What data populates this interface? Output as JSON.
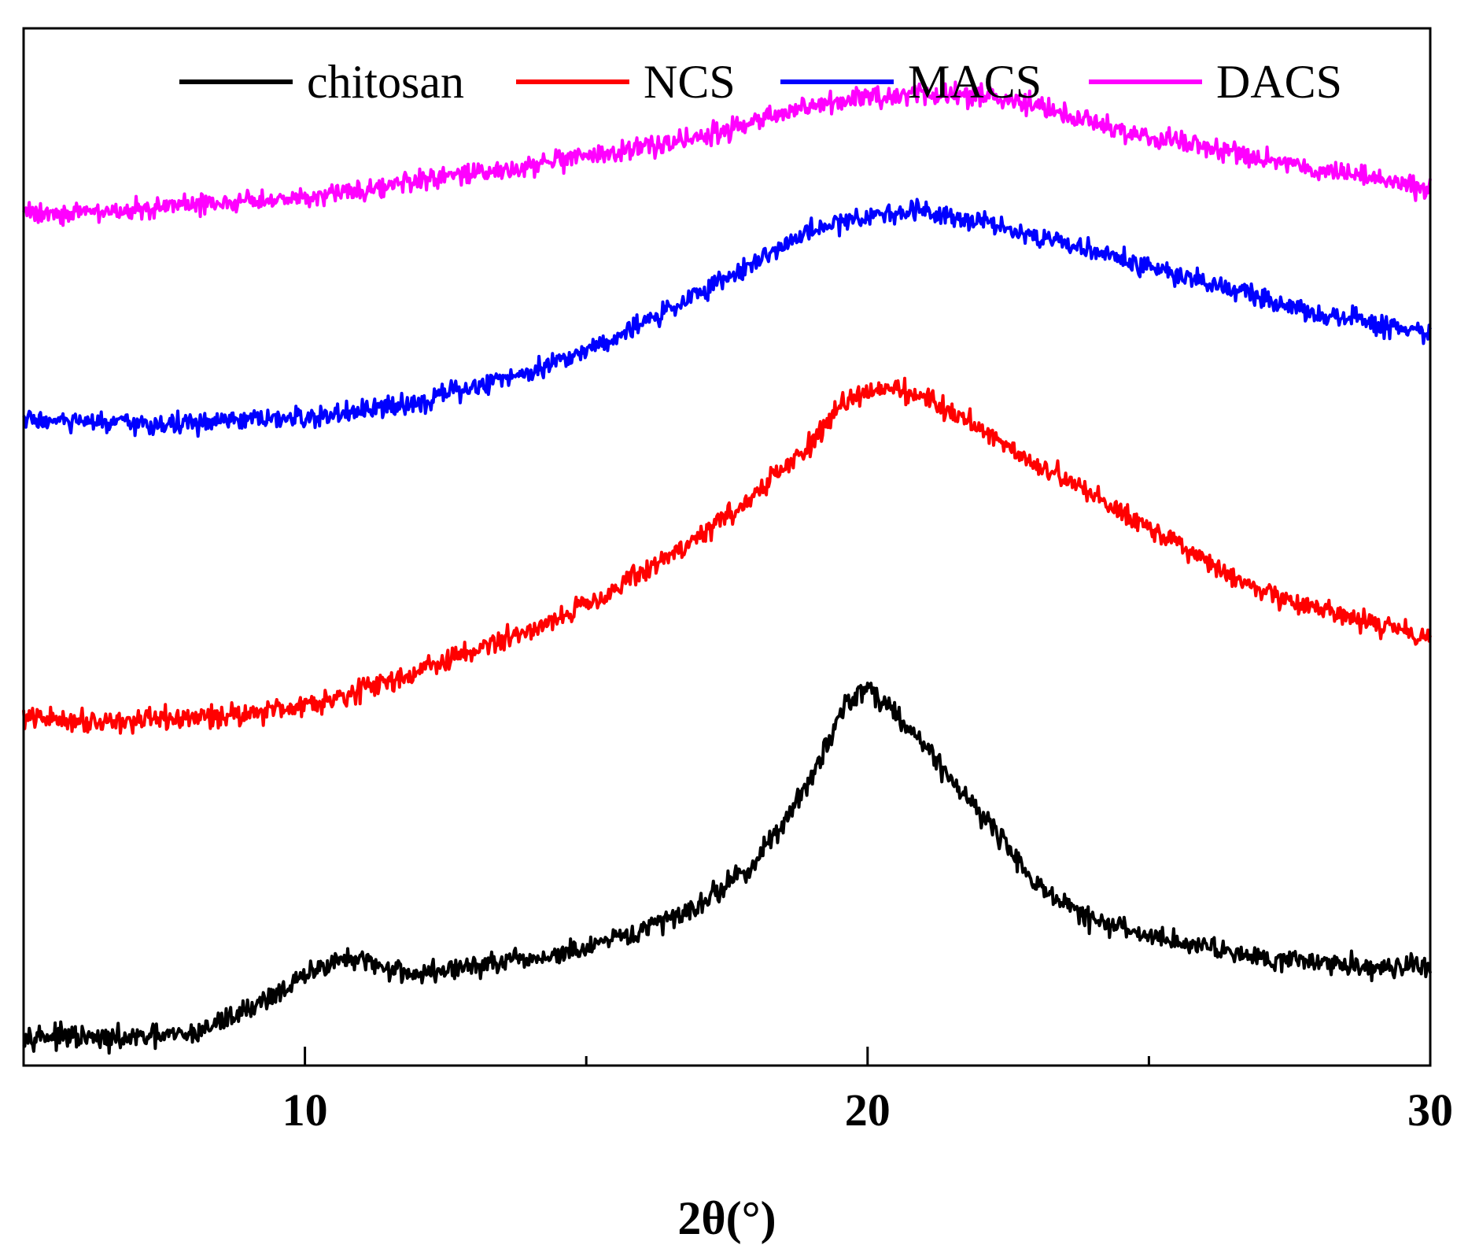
{
  "chart_data": {
    "type": "line",
    "title": "",
    "xlabel": "2θ(°)",
    "ylabel": "",
    "xlim": [
      5,
      30
    ],
    "ylim": [
      0,
      100
    ],
    "xticks": [
      10,
      20,
      30
    ],
    "xticks_minor": [
      15,
      25
    ],
    "grid": false,
    "legend_position": "top",
    "series": [
      {
        "name": "chitosan",
        "color": "#000000",
        "noise": 1.6,
        "points": [
          [
            5,
            3.0
          ],
          [
            6.5,
            2.5
          ],
          [
            8,
            3.0
          ],
          [
            9,
            5.5
          ],
          [
            10,
            8.5
          ],
          [
            10.5,
            10.2
          ],
          [
            11,
            10.0
          ],
          [
            12,
            8.8
          ],
          [
            13,
            9.6
          ],
          [
            14,
            10.2
          ],
          [
            15,
            11.2
          ],
          [
            16,
            13.0
          ],
          [
            17,
            15.5
          ],
          [
            18,
            19.5
          ],
          [
            19,
            27.5
          ],
          [
            19.6,
            35.0
          ],
          [
            20,
            36.5
          ],
          [
            20.5,
            34.0
          ],
          [
            21,
            31.0
          ],
          [
            21.5,
            27.5
          ],
          [
            22,
            24.5
          ],
          [
            22.5,
            21.0
          ],
          [
            23,
            17.5
          ],
          [
            23.5,
            15.5
          ],
          [
            24,
            14.0
          ],
          [
            25,
            12.5
          ],
          [
            26,
            11.5
          ],
          [
            27,
            10.5
          ],
          [
            28,
            10.0
          ],
          [
            29,
            9.5
          ],
          [
            30,
            9.5
          ]
        ]
      },
      {
        "name": "NCS",
        "color": "#ff0000",
        "noise": 1.6,
        "points": [
          [
            5,
            33.5
          ],
          [
            6,
            33.3
          ],
          [
            7,
            33.2
          ],
          [
            8,
            33.5
          ],
          [
            9,
            34.0
          ],
          [
            10,
            34.8
          ],
          [
            11,
            36.2
          ],
          [
            12,
            38.0
          ],
          [
            13,
            40.0
          ],
          [
            14,
            42.0
          ],
          [
            15,
            44.5
          ],
          [
            16,
            47.5
          ],
          [
            17,
            51.0
          ],
          [
            18,
            55.0
          ],
          [
            19,
            60.0
          ],
          [
            19.7,
            64.5
          ],
          [
            20.3,
            65.5
          ],
          [
            21,
            64.5
          ],
          [
            22,
            61.5
          ],
          [
            23,
            58.0
          ],
          [
            24,
            55.0
          ],
          [
            25,
            52.0
          ],
          [
            26,
            48.5
          ],
          [
            27,
            45.5
          ],
          [
            28,
            44.0
          ],
          [
            29,
            42.5
          ],
          [
            30,
            41.5
          ]
        ]
      },
      {
        "name": "MACS",
        "color": "#0000ff",
        "noise": 1.5,
        "points": [
          [
            5,
            62.3
          ],
          [
            6,
            62.0
          ],
          [
            7,
            61.8
          ],
          [
            8,
            61.9
          ],
          [
            9,
            62.2
          ],
          [
            10,
            62.4
          ],
          [
            11,
            63.0
          ],
          [
            12,
            64.0
          ],
          [
            13,
            65.4
          ],
          [
            14,
            67.0
          ],
          [
            15,
            69.0
          ],
          [
            16,
            71.5
          ],
          [
            17,
            74.5
          ],
          [
            18,
            77.5
          ],
          [
            19,
            80.5
          ],
          [
            20,
            82.0
          ],
          [
            21,
            82.5
          ],
          [
            22,
            81.5
          ],
          [
            23,
            80.0
          ],
          [
            24,
            78.5
          ],
          [
            25,
            77.0
          ],
          [
            26,
            75.5
          ],
          [
            27,
            74.0
          ],
          [
            28,
            72.5
          ],
          [
            29,
            71.5
          ],
          [
            30,
            70.5
          ]
        ]
      },
      {
        "name": "DACS",
        "color": "#ff00ff",
        "noise": 1.5,
        "points": [
          [
            5,
            82.3
          ],
          [
            6,
            82.2
          ],
          [
            7,
            82.5
          ],
          [
            8,
            83.0
          ],
          [
            9,
            83.3
          ],
          [
            10,
            83.8
          ],
          [
            11,
            84.5
          ],
          [
            12,
            85.2
          ],
          [
            13,
            86.0
          ],
          [
            14,
            86.7
          ],
          [
            15,
            87.5
          ],
          [
            16,
            88.5
          ],
          [
            17,
            89.5
          ],
          [
            18,
            91.0
          ],
          [
            19,
            92.5
          ],
          [
            20,
            93.2
          ],
          [
            21,
            93.8
          ],
          [
            22,
            93.5
          ],
          [
            23,
            92.5
          ],
          [
            24,
            91.0
          ],
          [
            25,
            89.5
          ],
          [
            26,
            88.5
          ],
          [
            27,
            87.5
          ],
          [
            28,
            86.5
          ],
          [
            29,
            85.5
          ],
          [
            30,
            84.5
          ]
        ]
      }
    ]
  }
}
